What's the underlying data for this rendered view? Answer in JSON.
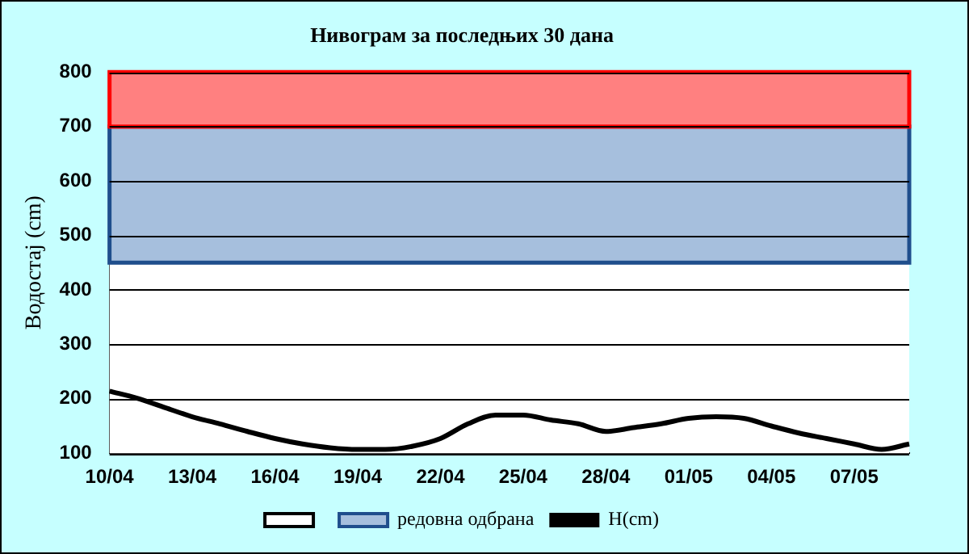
{
  "chart_data": {
    "type": "line",
    "title": "Нивограм за последњих 30 дана",
    "ylabel": "Водостај (cm)",
    "categories": [
      "10/04",
      null,
      null,
      "13/04",
      null,
      null,
      "16/04",
      null,
      null,
      "19/04",
      null,
      null,
      "22/04",
      null,
      null,
      "25/04",
      null,
      null,
      "28/04",
      null,
      null,
      "01/05",
      null,
      null,
      "04/05",
      null,
      null,
      "07/05",
      null,
      null
    ],
    "series": [
      {
        "name": "H(cm)",
        "color": "#000000",
        "values": [
          214,
          201,
          184,
          167,
          154,
          140,
          127,
          117,
          110,
          107,
          107,
          113,
          127,
          154,
          170,
          170,
          161,
          154,
          140,
          147,
          154,
          164,
          167,
          164,
          150,
          137,
          127,
          117,
          107,
          117
        ]
      }
    ],
    "bands": [
      {
        "axis": "y",
        "from": 100,
        "to": 450,
        "color": "#ffffff"
      },
      {
        "axis": "y",
        "from": 450,
        "to": 700,
        "label": "редовна одбрана",
        "color": "#a6bfdd"
      },
      {
        "axis": "y",
        "from": 700,
        "to": 800,
        "color": "#ff8080"
      }
    ],
    "ylim": [
      100,
      800
    ],
    "yticks": [
      100,
      200,
      300,
      400,
      500,
      600,
      700,
      800
    ],
    "grid": "y",
    "legend": "bottom",
    "marker": "none",
    "line_style": "solid"
  }
}
